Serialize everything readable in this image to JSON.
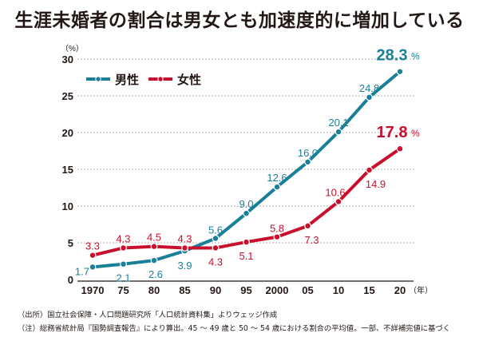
{
  "title": "生涯未婚者の割合は男女とも加速度的に増加している",
  "colors": {
    "male": "#1a7f98",
    "female": "#c8102e",
    "axis": "#231815",
    "grid": "#b5b5b5"
  },
  "notes": [
    "（出所）国立社会保障・人口問題研究所「人口統計資料集」よりウェッジ作成",
    "（注）総務省統計局『国勢調査報告』により算出。45 〜 49 歳と 50 〜 54 歳における割合の平均値。一部、不詳補完値に基づく"
  ],
  "chart_data": {
    "type": "line",
    "title": "生涯未婚者の割合は男女とも加速度的に増加している",
    "xlabel": "（年）",
    "ylabel": "（%）",
    "categories": [
      "1970",
      "75",
      "80",
      "85",
      "90",
      "95",
      "2000",
      "05",
      "10",
      "15",
      "20"
    ],
    "ylim": [
      0,
      30
    ],
    "yticks": [
      0,
      5,
      10,
      15,
      20,
      25,
      30
    ],
    "grid": true,
    "legend_position": "top-left",
    "series": [
      {
        "name": "男性",
        "color": "#1a7f98",
        "values": [
          1.7,
          2.1,
          2.6,
          3.9,
          5.6,
          9.0,
          12.6,
          16.0,
          20.1,
          24.8,
          28.3
        ],
        "labels": [
          "1.7",
          "2.1",
          "2.6",
          "3.9",
          "5.6",
          "9.0",
          "12.6",
          "16.0",
          "20.1",
          "24.8",
          "28.3"
        ],
        "final_label": "28.3",
        "final_unit": "%"
      },
      {
        "name": "女性",
        "color": "#c8102e",
        "values": [
          3.3,
          4.3,
          4.5,
          4.3,
          4.3,
          5.1,
          5.8,
          7.3,
          10.6,
          14.9,
          17.8
        ],
        "labels": [
          "3.3",
          "4.3",
          "4.5",
          "4.3",
          "4.3",
          "5.1",
          "5.8",
          "7.3",
          "10.6",
          "14.9",
          "17.8"
        ],
        "final_label": "17.8",
        "final_unit": "%"
      }
    ]
  }
}
